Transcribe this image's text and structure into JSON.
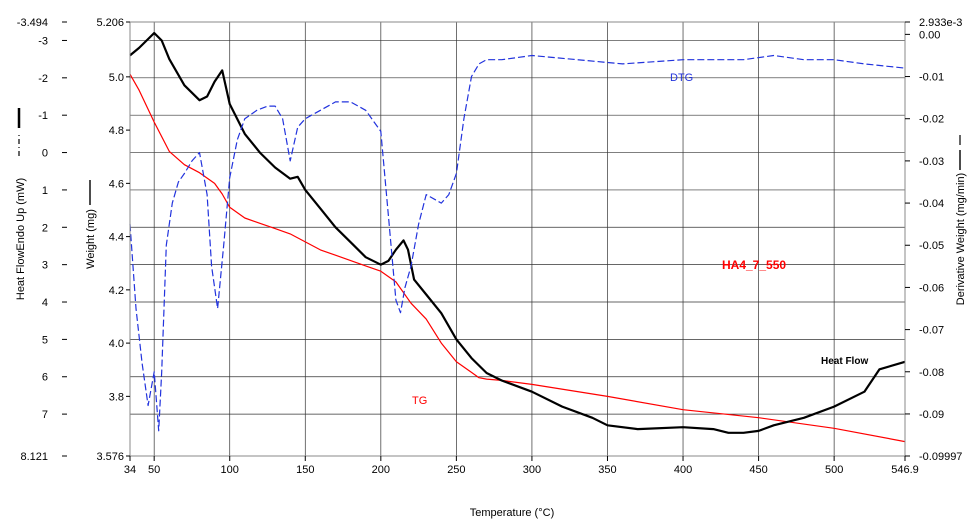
{
  "chart_data": {
    "type": "line",
    "xlabel": "Temperature (°C)",
    "xlim": [
      34,
      546.9
    ],
    "x_tick_labels": [
      "34",
      "50",
      "100",
      "150",
      "200",
      "250",
      "300",
      "350",
      "400",
      "450",
      "500",
      "546.9"
    ],
    "left_axis_1": {
      "label": "Heat FlowEndo Up (mW)",
      "range": [
        8.121,
        -3.494
      ],
      "tick_labels": [
        "-3.494",
        "-3",
        "-2",
        "-1",
        "0",
        "1",
        "2",
        "3",
        "4",
        "5",
        "6",
        "7",
        "8.121"
      ]
    },
    "left_axis_2": {
      "label": "Weight (mg)",
      "range": [
        3.576,
        5.206
      ],
      "tick_labels": [
        "5.206",
        "5.0",
        "4.8",
        "4.6",
        "4.4",
        "4.2",
        "4.0",
        "3.8",
        "3.576"
      ]
    },
    "right_axis": {
      "label": "Derivative Weight (mg/min)",
      "range": [
        -0.09997,
        0.002933
      ],
      "tick_labels": [
        "2.933e-3",
        "0.00",
        "-0.01",
        "-0.02",
        "-0.03",
        "-0.04",
        "-0.05",
        "-0.06",
        "-0.07",
        "-0.08",
        "-0.09",
        "-0.09997"
      ]
    },
    "annotations": {
      "sample": "HA4_7_550",
      "tg_label": "TG",
      "dtg_label": "DTG",
      "heat_flow_label": "Heat Flow"
    },
    "series": [
      {
        "name": "TG",
        "axis": "weight",
        "color": "#ff0000",
        "style": "solid",
        "x": [
          34,
          40,
          50,
          60,
          70,
          80,
          90,
          95,
          100,
          110,
          120,
          130,
          140,
          150,
          160,
          170,
          180,
          190,
          200,
          210,
          220,
          230,
          240,
          250,
          260,
          265,
          270,
          280,
          300,
          350,
          400,
          450,
          500,
          546.9
        ],
        "y": [
          5.01,
          4.95,
          4.83,
          4.72,
          4.67,
          4.64,
          4.6,
          4.56,
          4.51,
          4.47,
          4.45,
          4.43,
          4.41,
          4.38,
          4.35,
          4.33,
          4.31,
          4.29,
          4.27,
          4.23,
          4.15,
          4.09,
          4.0,
          3.93,
          3.89,
          3.87,
          3.865,
          3.86,
          3.845,
          3.8,
          3.75,
          3.72,
          3.68,
          3.63
        ]
      },
      {
        "name": "Heat Flow",
        "axis": "heat_flow",
        "color": "#000000",
        "style": "solid",
        "x": [
          34,
          40,
          45,
          50,
          55,
          60,
          70,
          80,
          85,
          90,
          95,
          100,
          110,
          120,
          130,
          140,
          145,
          150,
          160,
          170,
          180,
          190,
          200,
          205,
          210,
          215,
          218,
          222,
          230,
          240,
          250,
          260,
          270,
          280,
          300,
          320,
          340,
          350,
          370,
          400,
          420,
          430,
          440,
          450,
          460,
          480,
          500,
          520,
          530,
          546.9
        ],
        "y": [
          -2.6,
          -2.8,
          -3.0,
          -3.2,
          -3.0,
          -2.5,
          -1.8,
          -1.4,
          -1.5,
          -1.9,
          -2.2,
          -1.3,
          -0.5,
          0.0,
          0.4,
          0.7,
          0.65,
          1.0,
          1.5,
          2.0,
          2.4,
          2.8,
          3.0,
          2.9,
          2.6,
          2.35,
          2.6,
          3.4,
          3.8,
          4.3,
          5.0,
          5.5,
          5.9,
          6.1,
          6.4,
          6.8,
          7.1,
          7.3,
          7.4,
          7.35,
          7.4,
          7.5,
          7.5,
          7.45,
          7.3,
          7.1,
          6.8,
          6.4,
          5.8,
          5.6
        ]
      },
      {
        "name": "DTG",
        "axis": "derivative_weight",
        "color": "#2233dd",
        "style": "dashed",
        "x": [
          34,
          38,
          42,
          46,
          50,
          53,
          55,
          58,
          62,
          66,
          70,
          75,
          80,
          85,
          88,
          92,
          96,
          100,
          105,
          110,
          118,
          125,
          130,
          135,
          140,
          145,
          150,
          160,
          170,
          180,
          190,
          200,
          205,
          210,
          213,
          216,
          220,
          225,
          230,
          240,
          245,
          250,
          255,
          260,
          265,
          270,
          280,
          300,
          330,
          360,
          400,
          440,
          460,
          480,
          500,
          520,
          546.9
        ],
        "y": [
          -0.045,
          -0.065,
          -0.078,
          -0.088,
          -0.08,
          -0.094,
          -0.08,
          -0.05,
          -0.04,
          -0.035,
          -0.033,
          -0.03,
          -0.028,
          -0.038,
          -0.055,
          -0.065,
          -0.05,
          -0.034,
          -0.025,
          -0.02,
          -0.018,
          -0.017,
          -0.017,
          -0.02,
          -0.03,
          -0.022,
          -0.02,
          -0.018,
          -0.016,
          -0.016,
          -0.018,
          -0.023,
          -0.043,
          -0.063,
          -0.066,
          -0.06,
          -0.055,
          -0.045,
          -0.038,
          -0.04,
          -0.038,
          -0.033,
          -0.02,
          -0.01,
          -0.007,
          -0.006,
          -0.006,
          -0.005,
          -0.006,
          -0.007,
          -0.006,
          -0.006,
          -0.005,
          -0.006,
          -0.006,
          -0.007,
          -0.008
        ]
      }
    ],
    "grid": true,
    "legend": "none"
  }
}
